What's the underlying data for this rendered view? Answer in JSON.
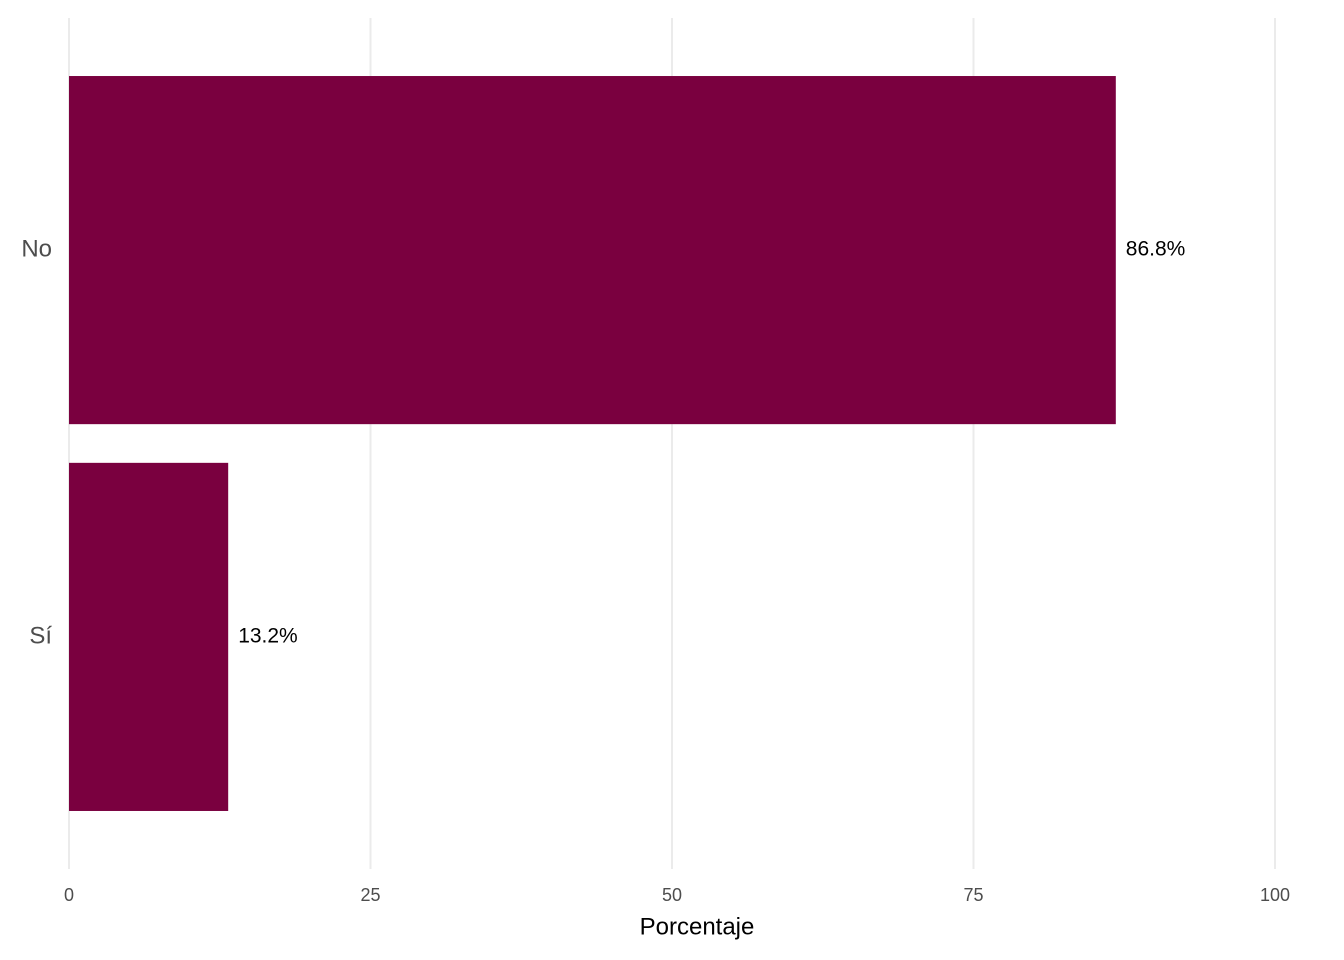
{
  "chart_data": {
    "type": "bar",
    "orientation": "horizontal",
    "categories": [
      "No",
      "Sí"
    ],
    "values": [
      86.8,
      13.2
    ],
    "value_labels": [
      "86.8%",
      "13.2%"
    ],
    "color": "#7a003f",
    "xlabel": "Porcentaje",
    "xlim": [
      0,
      100
    ],
    "xticks": [
      0,
      25,
      50,
      75,
      100
    ],
    "grid": true
  }
}
